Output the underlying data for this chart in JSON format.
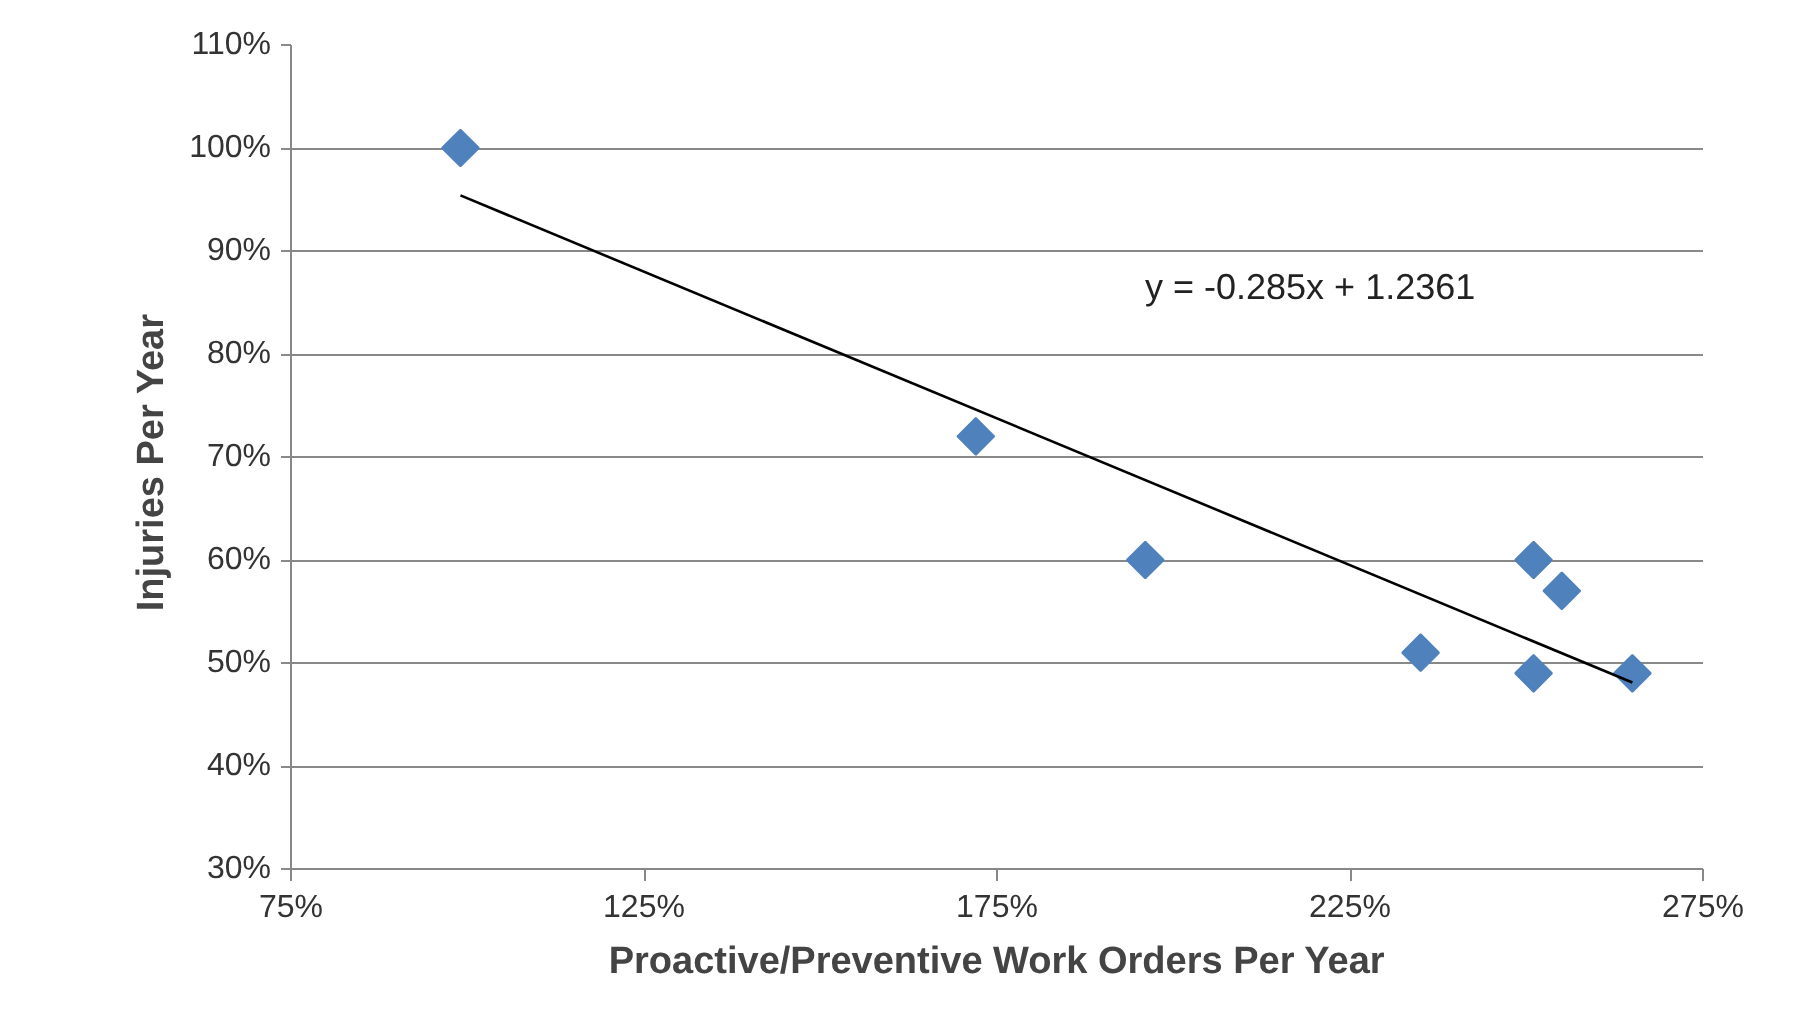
{
  "chart_data": {
    "type": "scatter",
    "xlabel": "Proactive/Preventive Work Orders Per Year",
    "ylabel": "Injuries  Per Year",
    "series": [
      {
        "color": "#4f81bd",
        "x": [
          99,
          172,
          196,
          235,
          251,
          255,
          251,
          265
        ],
        "values": [
          100,
          72,
          60,
          51,
          60,
          57,
          49,
          49
        ]
      },
      {
        "type": "line",
        "marker": "none",
        "color": "#000000",
        "x": [
          99,
          265
        ],
        "values": [
          95.4,
          48.1
        ]
      }
    ],
    "annotations": [
      "y = -0.285x + 1.2361"
    ],
    "xlim": [
      75,
      275
    ],
    "ylim": [
      30,
      110
    ],
    "xticks": [
      {
        "value": 75,
        "label": "75%"
      },
      {
        "value": 125,
        "label": "125%"
      },
      {
        "value": 175,
        "label": "175%"
      },
      {
        "value": 225,
        "label": "225%"
      },
      {
        "value": 275,
        "label": "275%"
      }
    ],
    "yticks": [
      {
        "value": 30,
        "label": "30%"
      },
      {
        "value": 40,
        "label": "40%"
      },
      {
        "value": 50,
        "label": "50%"
      },
      {
        "value": 60,
        "label": "60%"
      },
      {
        "value": 70,
        "label": "70%"
      },
      {
        "value": 80,
        "label": "80%"
      },
      {
        "value": 90,
        "label": "90%"
      },
      {
        "value": 100,
        "label": "100%"
      },
      {
        "value": 110,
        "label": "110%"
      }
    ],
    "grid": "y",
    "marker": "diamond"
  }
}
